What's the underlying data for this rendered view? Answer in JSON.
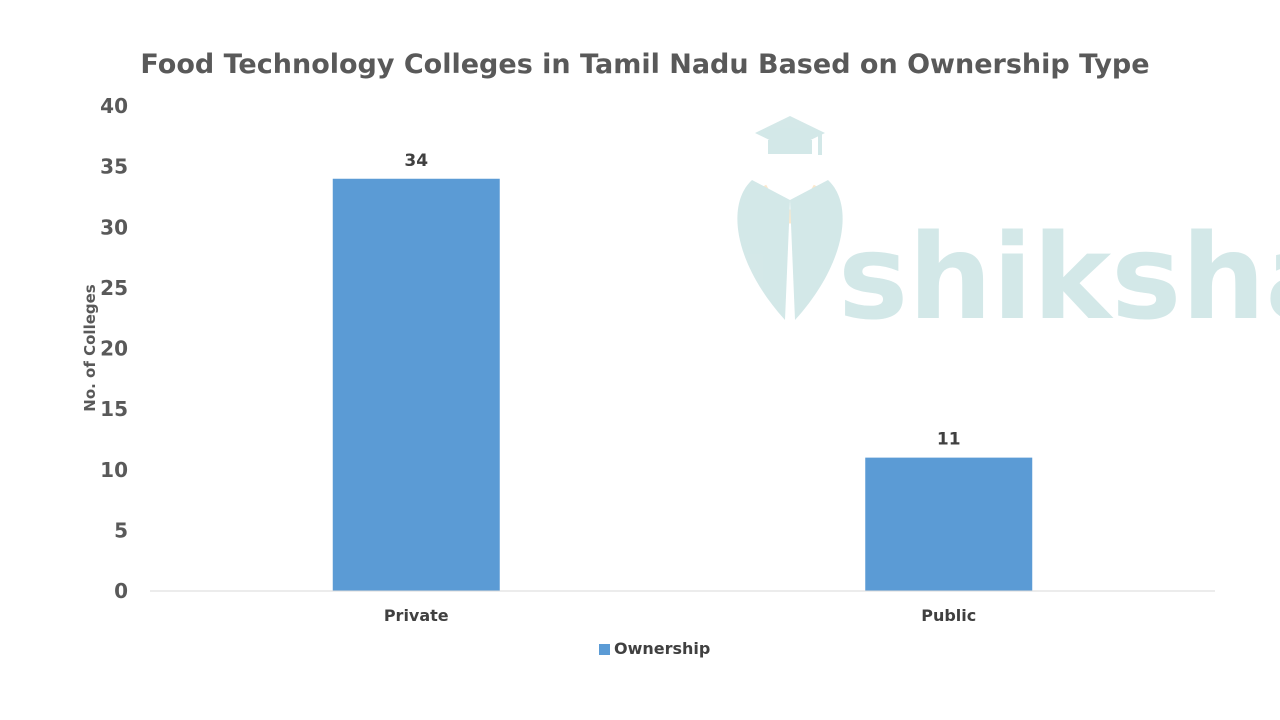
{
  "chart_data": {
    "type": "bar",
    "title": "Food Technology Colleges in Tamil Nadu Based on Ownership Type",
    "xlabel": "",
    "ylabel": "No. of Colleges",
    "categories": [
      "Private",
      "Public"
    ],
    "series": [
      {
        "name": "Ownership",
        "values": [
          34,
          11
        ]
      }
    ],
    "ylim": [
      0,
      40
    ],
    "yticks": [
      0,
      5,
      10,
      15,
      20,
      25,
      30,
      35,
      40
    ],
    "grid": false,
    "legend_position": "bottom",
    "data_labels": true
  },
  "colors": {
    "bar": "#5b9bd5",
    "axis": "#d9d9d9",
    "watermark": "#cfe6e6",
    "watermark_accent": "#fbe6c8"
  },
  "watermark": {
    "text": "shiksha",
    "icon": "graduation-cap-logo-icon"
  }
}
